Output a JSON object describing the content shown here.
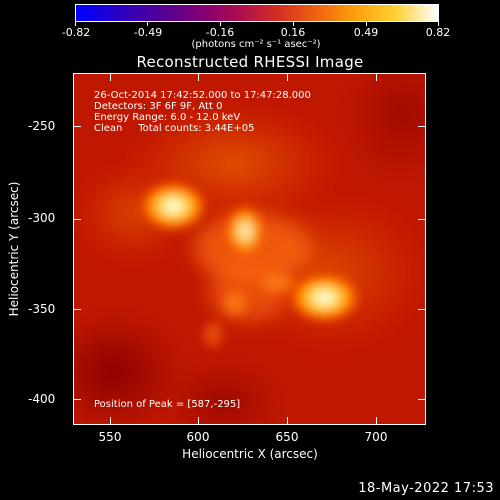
{
  "colorbar": {
    "ticks": [
      "-0.82",
      "-0.49",
      "-0.16",
      "0.16",
      "0.49",
      "0.82"
    ],
    "units": "(photons cm⁻² s⁻¹ asec⁻²)"
  },
  "title": "Reconstructed RHESSI Image",
  "info": {
    "line1": "26-Oct-2014 17:42:52.000 to 17:47:28.000",
    "line2": "Detectors: 3F 6F 9F, Att 0",
    "line3": "Energy Range: 6.0 - 12.0 keV",
    "line4": "Clean     Total counts: 3.44E+05",
    "peak": "Position of Peak = [587,-295]"
  },
  "axes": {
    "x_ticks": [
      "550",
      "600",
      "650",
      "700"
    ],
    "y_ticks": [
      "-250",
      "-300",
      "-350",
      "-400"
    ],
    "xlabel": "Heliocentric X (arcsec)",
    "ylabel": "Heliocentric Y (arcsec)"
  },
  "footer_date": "18-May-2022 17:53"
}
